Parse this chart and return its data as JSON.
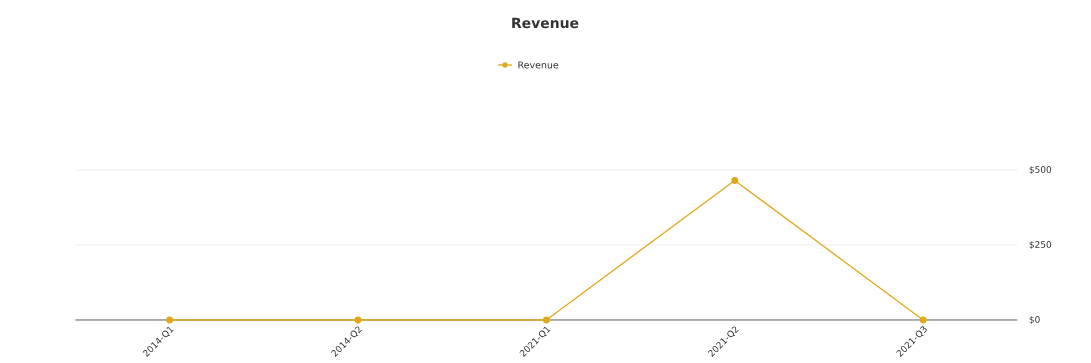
{
  "chart_data": {
    "type": "line",
    "title": "Revenue",
    "categories": [
      "2014-Q1",
      "2014-Q2",
      "2021-Q1",
      "2021-Q2",
      "2021-Q3"
    ],
    "series": [
      {
        "name": "Revenue",
        "color": "#e0a91a",
        "values": [
          0,
          0,
          0,
          465,
          0
        ]
      }
    ],
    "ylim": [
      0,
      500
    ],
    "yticks": [
      {
        "value": 0,
        "label": "$0"
      },
      {
        "value": 250,
        "label": "$250"
      },
      {
        "value": 500,
        "label": "$500"
      }
    ],
    "grid": "y",
    "legend": "top",
    "marker": "circle",
    "line_style": "solid"
  }
}
